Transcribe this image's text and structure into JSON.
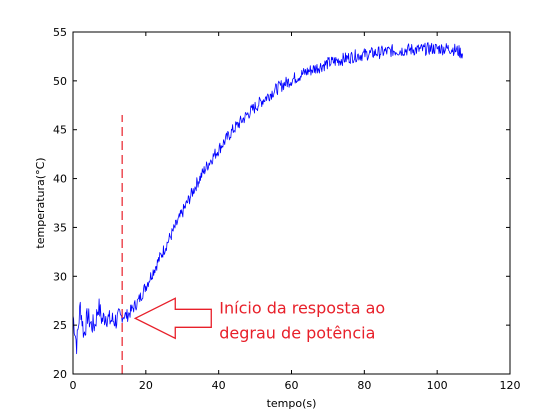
{
  "colors": {
    "series": "#0000ff",
    "annotation": "#e8202a",
    "axes": "#000000",
    "background": "#ffffff"
  },
  "chart_data": {
    "type": "line",
    "title": "",
    "xlabel": "tempo(s)",
    "ylabel": "temperatura(°C)",
    "xlim": [
      0,
      120
    ],
    "ylim": [
      20,
      55
    ],
    "xticks": [
      "0",
      "20",
      "40",
      "60",
      "80",
      "100",
      "120"
    ],
    "yticks": [
      "20",
      "25",
      "30",
      "35",
      "40",
      "45",
      "50",
      "55"
    ],
    "grid": false,
    "legend": "none",
    "series": [
      {
        "color": "#0000ff",
        "x": [
          0,
          1,
          2,
          3,
          4,
          5,
          6,
          7,
          8,
          9,
          10,
          11,
          12,
          13,
          14,
          15,
          16,
          17,
          18,
          20,
          22,
          24,
          26,
          28,
          30,
          32,
          34,
          36,
          38,
          40,
          42,
          44,
          46,
          48,
          50,
          52,
          54,
          56,
          58,
          60,
          62,
          64,
          66,
          68,
          70,
          72,
          74,
          76,
          78,
          80,
          82,
          84,
          86,
          88,
          90,
          92,
          94,
          96,
          98,
          100,
          102,
          104,
          106,
          107
        ],
        "y": [
          26,
          23,
          27,
          24,
          26,
          25,
          25,
          27,
          25.5,
          26,
          25.5,
          25.5,
          25.5,
          25.8,
          26,
          26,
          26.5,
          27,
          27.5,
          29,
          30.5,
          32,
          33.5,
          35,
          36.5,
          38,
          39.5,
          40.8,
          42,
          43,
          44,
          45,
          45.8,
          46.6,
          47.3,
          48,
          48.6,
          49.2,
          49.7,
          50.1,
          50.5,
          50.9,
          51.2,
          51.5,
          51.8,
          52,
          52.2,
          52.4,
          52.6,
          52.7,
          52.8,
          52.9,
          53,
          53.1,
          53.1,
          53.2,
          53.2,
          53.2,
          53.3,
          53.3,
          53.3,
          53.3,
          53,
          52.8
        ]
      }
    ],
    "marker_line": {
      "x": 13.5,
      "y_top": 46.5,
      "style": "dashed"
    },
    "annotations": [
      {
        "line1": "Início da resposta ao",
        "line2": "degrau de potência",
        "arrow_x": 16,
        "arrow_y": 25.8
      }
    ]
  }
}
